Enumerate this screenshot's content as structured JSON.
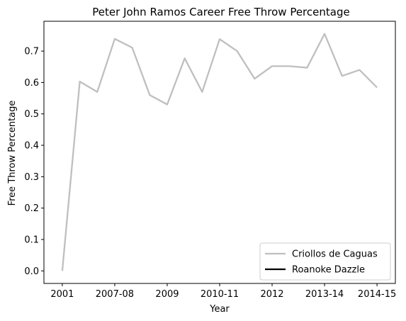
{
  "chart_data": {
    "type": "line",
    "title": "Peter John Ramos Career Free Throw Percentage",
    "xlabel": "Year",
    "ylabel": "Free Throw Percentage",
    "x_tick_labels": [
      "2001",
      "2007-08",
      "2009",
      "2010-11",
      "2012",
      "2013-14",
      "2014-15"
    ],
    "y_ticks": [
      "0.0",
      "0.1",
      "0.2",
      "0.3",
      "0.4",
      "0.5",
      "0.6",
      "0.7"
    ],
    "ylim": [
      -0.04,
      0.795
    ],
    "grid": false,
    "legend_position": "lower-right",
    "series": [
      {
        "name": "Criollos de Caguas",
        "color": "#bfbfbf",
        "values": [
          0.0,
          0.603,
          0.57,
          0.739,
          0.711,
          0.56,
          0.53,
          0.677,
          0.57,
          0.738,
          0.7,
          0.612,
          0.652,
          0.652,
          0.647,
          0.755,
          0.621,
          0.64,
          0.584
        ]
      },
      {
        "name": "Roanoke Dazzle",
        "color": "#000000",
        "values": []
      }
    ]
  }
}
